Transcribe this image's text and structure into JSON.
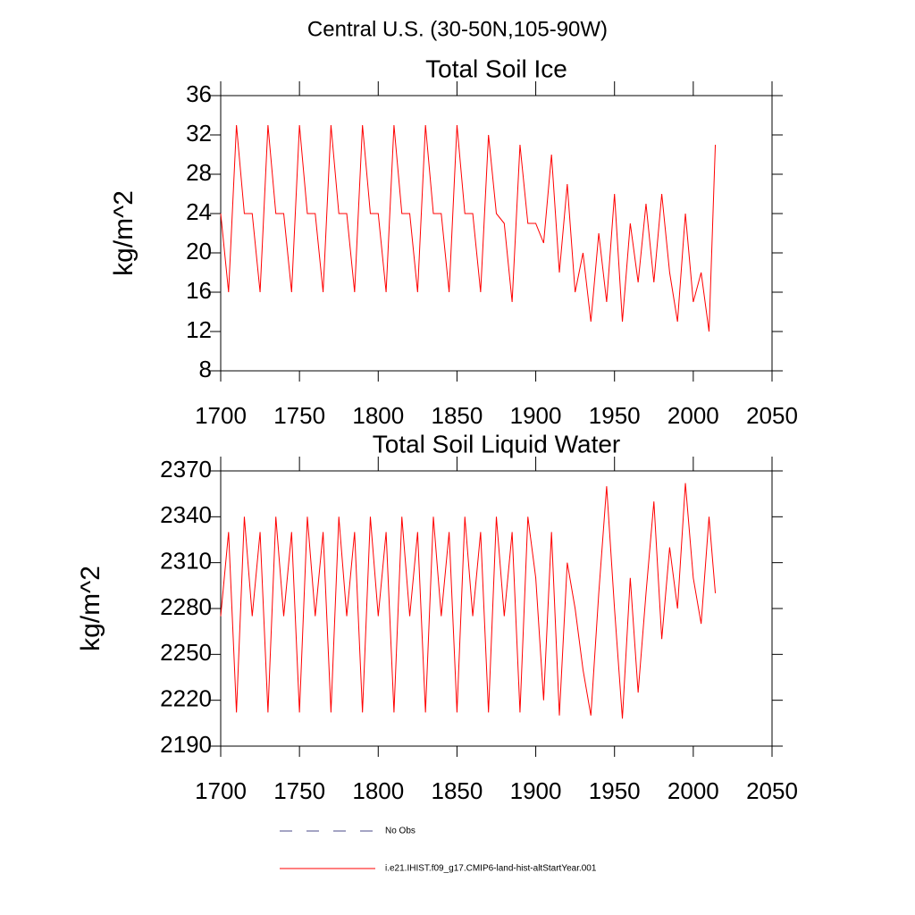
{
  "title": "Central U.S. (30-50N,105-90W)",
  "legend": [
    {
      "name": "No Obs",
      "color": "#4a4a8a",
      "dashed": true
    },
    {
      "name": "i.e21.IHIST.f09_g17.CMIP6-land-hist-altStartYear.001",
      "color": "#ff0000",
      "dashed": false
    }
  ],
  "chart_data": [
    {
      "type": "line",
      "title": "Total Soil Ice",
      "y_label": "kg/m^2",
      "x": [
        1700,
        1705,
        1710,
        1715,
        1720,
        1725,
        1730,
        1735,
        1740,
        1745,
        1750,
        1755,
        1760,
        1765,
        1770,
        1775,
        1780,
        1785,
        1790,
        1795,
        1800,
        1805,
        1810,
        1815,
        1820,
        1825,
        1830,
        1835,
        1840,
        1845,
        1850,
        1855,
        1860,
        1865,
        1870,
        1875,
        1880,
        1885,
        1890,
        1895,
        1900,
        1905,
        1910,
        1915,
        1920,
        1925,
        1930,
        1935,
        1940,
        1945,
        1950,
        1955,
        1960,
        1965,
        1970,
        1975,
        1980,
        1985,
        1990,
        1995,
        2000,
        2005,
        2010,
        2014
      ],
      "series": [
        {
          "name": "i.e21.IHIST.f09_g17.CMIP6-land-hist-altStartYear.001",
          "color": "#ff0000",
          "values": [
            24,
            16,
            33,
            24,
            24,
            16,
            33,
            24,
            24,
            16,
            33,
            24,
            24,
            16,
            33,
            24,
            24,
            16,
            33,
            24,
            24,
            16,
            33,
            24,
            24,
            16,
            33,
            24,
            24,
            16,
            33,
            24,
            24,
            16,
            32,
            24,
            23,
            15,
            31,
            23,
            23,
            21,
            30,
            18,
            27,
            16,
            20,
            13,
            22,
            15,
            26,
            13,
            23,
            17,
            25,
            17,
            26,
            18,
            13,
            24,
            15,
            18,
            12,
            31
          ]
        }
      ],
      "xlim": [
        1700,
        2050
      ],
      "xticks": [
        1700,
        1750,
        1800,
        1850,
        1900,
        1950,
        2000,
        2050
      ],
      "ylim": [
        8,
        36
      ],
      "yticks": [
        8,
        12,
        16,
        20,
        24,
        28,
        32,
        36
      ]
    },
    {
      "type": "line",
      "title": "Total Soil Liquid Water",
      "y_label": "kg/m^2",
      "x": [
        1700,
        1705,
        1710,
        1715,
        1720,
        1725,
        1730,
        1735,
        1740,
        1745,
        1750,
        1755,
        1760,
        1765,
        1770,
        1775,
        1780,
        1785,
        1790,
        1795,
        1800,
        1805,
        1810,
        1815,
        1820,
        1825,
        1830,
        1835,
        1840,
        1845,
        1850,
        1855,
        1860,
        1865,
        1870,
        1875,
        1880,
        1885,
        1890,
        1895,
        1900,
        1905,
        1910,
        1915,
        1920,
        1925,
        1930,
        1935,
        1940,
        1945,
        1950,
        1955,
        1960,
        1965,
        1970,
        1975,
        1980,
        1985,
        1990,
        1995,
        2000,
        2005,
        2010,
        2014
      ],
      "series": [
        {
          "name": "i.e21.IHIST.f09_g17.CMIP6-land-hist-altStartYear.001",
          "color": "#ff0000",
          "values": [
            2275,
            2330,
            2212,
            2340,
            2275,
            2330,
            2212,
            2340,
            2275,
            2330,
            2212,
            2340,
            2275,
            2330,
            2212,
            2340,
            2275,
            2330,
            2212,
            2340,
            2275,
            2330,
            2212,
            2340,
            2275,
            2330,
            2212,
            2340,
            2275,
            2330,
            2212,
            2340,
            2275,
            2330,
            2212,
            2340,
            2275,
            2330,
            2212,
            2340,
            2300,
            2220,
            2330,
            2210,
            2310,
            2280,
            2240,
            2210,
            2290,
            2360,
            2280,
            2208,
            2300,
            2225,
            2290,
            2350,
            2260,
            2320,
            2280,
            2362,
            2300,
            2270,
            2340,
            2290
          ]
        }
      ],
      "xlim": [
        1700,
        2050
      ],
      "xticks": [
        1700,
        1750,
        1800,
        1850,
        1900,
        1950,
        2000,
        2050
      ],
      "ylim": [
        2190,
        2370
      ],
      "yticks": [
        2190,
        2220,
        2250,
        2280,
        2310,
        2340,
        2370
      ]
    }
  ]
}
